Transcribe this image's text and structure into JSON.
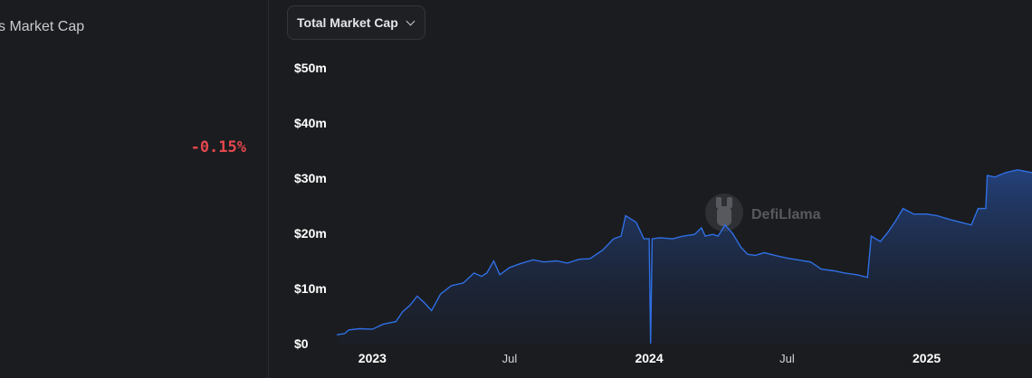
{
  "stat": {
    "label": "s Market Cap",
    "change": "-0.15%"
  },
  "dropdown": {
    "selected": "Total Market Cap"
  },
  "watermark": {
    "text": "DefiLlama"
  },
  "colors": {
    "line": "#2f6fe4",
    "negative": "#e5484d"
  },
  "chart_data": {
    "type": "area",
    "y_tick_labels": [
      "$0",
      "$10m",
      "$20m",
      "$30m",
      "$40m",
      "$50m"
    ],
    "y_tick_values": [
      0,
      10,
      20,
      30,
      40,
      50
    ],
    "ylim": [
      0,
      50
    ],
    "x_ticks": [
      {
        "label": "2023",
        "date": "2023-01-01",
        "year": true
      },
      {
        "label": "Jul",
        "date": "2023-07-01",
        "year": false
      },
      {
        "label": "2024",
        "date": "2024-01-01",
        "year": true
      },
      {
        "label": "Jul",
        "date": "2024-07-01",
        "year": false
      },
      {
        "label": "2025",
        "date": "2025-01-01",
        "year": true
      }
    ],
    "xlim": [
      "2022-11-15",
      "2025-05-20"
    ],
    "grid": false,
    "unit": "million USD",
    "series": [
      {
        "points": [
          [
            "2022-11-15",
            1.6
          ],
          [
            "2022-11-25",
            1.8
          ],
          [
            "2022-12-01",
            2.5
          ],
          [
            "2022-12-15",
            2.7
          ],
          [
            "2023-01-01",
            2.6
          ],
          [
            "2023-01-15",
            3.5
          ],
          [
            "2023-02-01",
            4.0
          ],
          [
            "2023-02-10",
            5.8
          ],
          [
            "2023-02-20",
            7.0
          ],
          [
            "2023-03-01",
            8.6
          ],
          [
            "2023-03-10",
            7.5
          ],
          [
            "2023-03-20",
            6.0
          ],
          [
            "2023-04-01",
            9.0
          ],
          [
            "2023-04-15",
            10.5
          ],
          [
            "2023-05-01",
            11.0
          ],
          [
            "2023-05-15",
            12.8
          ],
          [
            "2023-05-25",
            12.2
          ],
          [
            "2023-06-01",
            12.8
          ],
          [
            "2023-06-10",
            15.0
          ],
          [
            "2023-06-18",
            12.5
          ],
          [
            "2023-07-01",
            13.8
          ],
          [
            "2023-07-15",
            14.5
          ],
          [
            "2023-08-01",
            15.2
          ],
          [
            "2023-08-15",
            14.8
          ],
          [
            "2023-09-01",
            15.0
          ],
          [
            "2023-09-15",
            14.6
          ],
          [
            "2023-10-01",
            15.3
          ],
          [
            "2023-10-15",
            15.4
          ],
          [
            "2023-11-01",
            17.0
          ],
          [
            "2023-11-15",
            19.0
          ],
          [
            "2023-11-25",
            19.5
          ],
          [
            "2023-12-01",
            23.2
          ],
          [
            "2023-12-15",
            22.0
          ],
          [
            "2023-12-25",
            19.0
          ],
          [
            "2024-01-01",
            19.0
          ],
          [
            "2024-01-03",
            0.0
          ],
          [
            "2024-01-05",
            19.0
          ],
          [
            "2024-01-15",
            19.2
          ],
          [
            "2024-02-01",
            19.0
          ],
          [
            "2024-02-15",
            19.5
          ],
          [
            "2024-03-01",
            19.8
          ],
          [
            "2024-03-10",
            21.0
          ],
          [
            "2024-03-15",
            19.5
          ],
          [
            "2024-03-25",
            19.8
          ],
          [
            "2024-04-01",
            19.5
          ],
          [
            "2024-04-10",
            21.5
          ],
          [
            "2024-04-20",
            20.0
          ],
          [
            "2024-05-01",
            17.5
          ],
          [
            "2024-05-10",
            16.2
          ],
          [
            "2024-05-20",
            16.0
          ],
          [
            "2024-06-01",
            16.5
          ],
          [
            "2024-06-15",
            16.0
          ],
          [
            "2024-07-01",
            15.5
          ],
          [
            "2024-07-15",
            15.2
          ],
          [
            "2024-08-01",
            14.8
          ],
          [
            "2024-08-15",
            13.5
          ],
          [
            "2024-09-01",
            13.2
          ],
          [
            "2024-09-15",
            12.8
          ],
          [
            "2024-10-01",
            12.5
          ],
          [
            "2024-10-15",
            12.0
          ],
          [
            "2024-10-20",
            19.5
          ],
          [
            "2024-11-01",
            18.5
          ],
          [
            "2024-11-10",
            20.0
          ],
          [
            "2024-11-20",
            22.0
          ],
          [
            "2024-12-01",
            24.5
          ],
          [
            "2024-12-15",
            23.5
          ],
          [
            "2025-01-01",
            23.5
          ],
          [
            "2025-01-15",
            23.2
          ],
          [
            "2025-02-01",
            22.5
          ],
          [
            "2025-02-15",
            22.0
          ],
          [
            "2025-03-01",
            21.5
          ],
          [
            "2025-03-10",
            24.5
          ],
          [
            "2025-03-20",
            24.5
          ],
          [
            "2025-03-22",
            30.5
          ],
          [
            "2025-04-01",
            30.2
          ],
          [
            "2025-04-15",
            31.0
          ],
          [
            "2025-05-01",
            31.5
          ],
          [
            "2025-05-20",
            31.0
          ]
        ]
      }
    ]
  }
}
